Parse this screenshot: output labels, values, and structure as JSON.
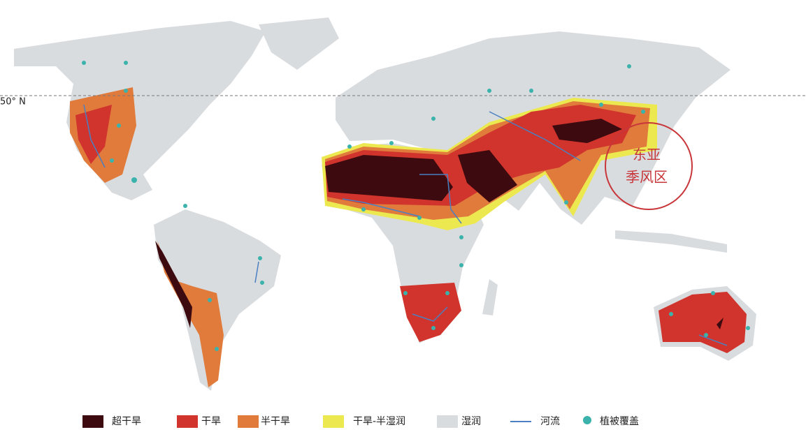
{
  "map": {
    "latitude_label": "50° N",
    "annotation": {
      "lines": [
        "东亚",
        "季风区"
      ],
      "color": "#c8363a"
    },
    "legend": [
      {
        "label": "超干旱",
        "color": "#3d0a0f",
        "kind": "area"
      },
      {
        "label": "干旱",
        "color": "#d0342c",
        "kind": "area"
      },
      {
        "label": "半干旱",
        "color": "#e07b3c",
        "kind": "area"
      },
      {
        "label": "干旱-半湿润",
        "color": "#ece84f",
        "kind": "area"
      },
      {
        "label": "湿润",
        "color": "#d9dcdf",
        "kind": "area"
      },
      {
        "label": "河流",
        "color": "#4a7fc1",
        "kind": "line"
      },
      {
        "label": "植被覆盖",
        "color": "#3bb3ac",
        "kind": "dot"
      }
    ]
  }
}
